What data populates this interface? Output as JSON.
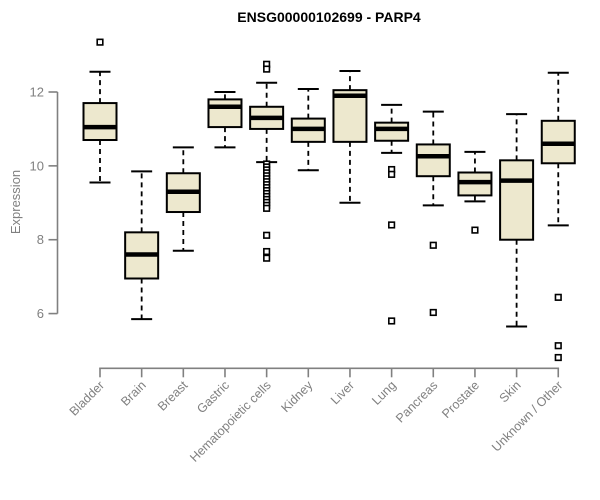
{
  "chart_data": {
    "type": "boxplot",
    "title": "ENSG00000102699 - PARP4",
    "xlabel": "",
    "ylabel": "Expression",
    "yticks": [
      6,
      8,
      10,
      12
    ],
    "ylim": [
      4.5,
      13.5
    ],
    "grid": false,
    "legend": false,
    "categories": [
      "Bladder",
      "Brain",
      "Breast",
      "Gastric",
      "Hematopoietic cells",
      "Kidney",
      "Liver",
      "Lung",
      "Pancreas",
      "Prostate",
      "Skin",
      "Unknown / Other"
    ],
    "series": [
      {
        "category": "Bladder",
        "whisker_low": 9.55,
        "q1": 10.7,
        "median": 11.05,
        "q3": 11.7,
        "whisker_high": 12.55,
        "outliers": [
          13.35
        ]
      },
      {
        "category": "Brain",
        "whisker_low": 5.85,
        "q1": 6.95,
        "median": 7.6,
        "q3": 8.2,
        "whisker_high": 9.85,
        "outliers": []
      },
      {
        "category": "Breast",
        "whisker_low": 7.7,
        "q1": 8.75,
        "median": 9.3,
        "q3": 9.8,
        "whisker_high": 10.5,
        "outliers": []
      },
      {
        "category": "Gastric",
        "whisker_low": 10.5,
        "q1": 11.05,
        "median": 11.6,
        "q3": 11.8,
        "whisker_high": 12.0,
        "outliers": []
      },
      {
        "category": "Hematopoietic cells",
        "whisker_low": 10.1,
        "q1": 11.0,
        "median": 11.3,
        "q3": 11.6,
        "whisker_high": 12.25,
        "outliers": [
          12.75,
          12.62,
          10.05,
          9.97,
          9.89,
          9.81,
          9.73,
          9.65,
          9.57,
          9.49,
          9.41,
          9.33,
          9.25,
          9.17,
          9.09,
          9.01,
          8.93,
          8.85,
          8.12,
          7.68,
          7.5
        ]
      },
      {
        "category": "Kidney",
        "whisker_low": 9.88,
        "q1": 10.65,
        "median": 11.0,
        "q3": 11.28,
        "whisker_high": 12.08,
        "outliers": []
      },
      {
        "category": "Liver",
        "whisker_low": 9.0,
        "q1": 10.65,
        "median": 11.9,
        "q3": 12.05,
        "whisker_high": 12.57,
        "outliers": []
      },
      {
        "category": "Lung",
        "whisker_low": 10.35,
        "q1": 10.68,
        "median": 11.0,
        "q3": 11.17,
        "whisker_high": 11.65,
        "outliers": [
          9.9,
          9.77,
          8.4,
          5.8
        ]
      },
      {
        "category": "Pancreas",
        "whisker_low": 8.93,
        "q1": 9.72,
        "median": 10.26,
        "q3": 10.58,
        "whisker_high": 11.47,
        "outliers": [
          7.85,
          6.03
        ]
      },
      {
        "category": "Prostate",
        "whisker_low": 9.04,
        "q1": 9.2,
        "median": 9.56,
        "q3": 9.82,
        "whisker_high": 10.38,
        "outliers": [
          8.26
        ]
      },
      {
        "category": "Skin",
        "whisker_low": 5.65,
        "q1": 8.0,
        "median": 9.6,
        "q3": 10.15,
        "whisker_high": 11.4,
        "outliers": []
      },
      {
        "category": "Unknown / Other",
        "whisker_low": 8.39,
        "q1": 10.07,
        "median": 10.6,
        "q3": 11.22,
        "whisker_high": 12.52,
        "outliers": [
          6.44,
          5.13,
          4.81
        ]
      }
    ],
    "colors": {
      "box_fill": "#ede8ce",
      "box_stroke": "#000000",
      "median": "#000000",
      "whisker": "#000000",
      "outlier_stroke": "#000000",
      "outlier_fill": "#ffffff",
      "axis": "#808080",
      "tick_text": "#808080",
      "title_text": "#000000"
    }
  }
}
